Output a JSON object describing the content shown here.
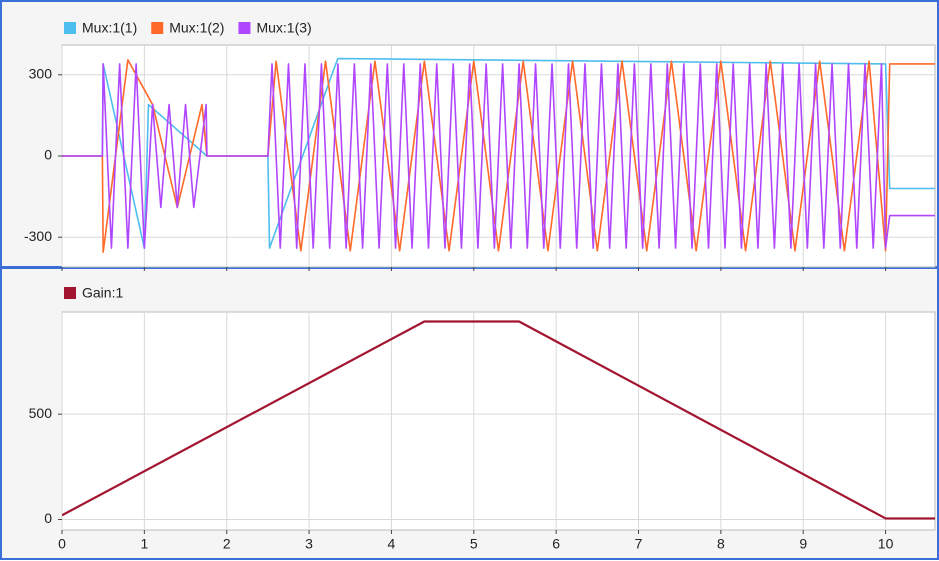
{
  "chart_data": [
    {
      "type": "line",
      "xlim": [
        0,
        10.6
      ],
      "xticks": [
        0,
        1,
        2,
        3,
        4,
        5,
        6,
        7,
        8,
        9,
        10
      ],
      "show_xtick_labels": false,
      "ylim": [
        -410,
        410
      ],
      "yticks": [
        -300,
        0,
        300
      ],
      "grid": true,
      "legend": "top-left",
      "series": [
        {
          "name": "Mux:1(1)",
          "color": "#4dbeee",
          "x": [
            0,
            0.49,
            0.5,
            1.0,
            1.05,
            1.76,
            2.5,
            2.52,
            3.3,
            3.35,
            10.0,
            10.05,
            10.6
          ],
          "values": [
            0,
            0,
            340,
            -340,
            190,
            0,
            0,
            -340,
            320,
            360,
            340,
            -120,
            -120
          ]
        },
        {
          "name": "Mux:1(2)",
          "color": "#ff6929",
          "x": [
            0,
            0.49,
            0.5,
            0.8,
            1.1,
            1.4,
            1.7,
            1.76,
            2.5,
            2.6,
            2.9,
            3.2,
            3.5,
            3.8,
            4.1,
            4.4,
            4.7,
            5.0,
            5.3,
            5.6,
            5.9,
            6.2,
            6.5,
            6.8,
            7.1,
            7.4,
            7.7,
            8.0,
            8.3,
            8.6,
            8.9,
            9.2,
            9.5,
            9.8,
            10.0,
            10.05,
            10.6
          ],
          "values": [
            0,
            0,
            -355,
            355,
            190,
            -190,
            190,
            0,
            0,
            350,
            -350,
            350,
            -350,
            350,
            -350,
            350,
            -350,
            350,
            -350,
            350,
            -350,
            350,
            -350,
            350,
            -350,
            350,
            -350,
            350,
            -350,
            350,
            -350,
            350,
            -350,
            350,
            -350,
            340,
            340
          ]
        },
        {
          "name": "Mux:1(3)",
          "color": "#b146ff",
          "x": [
            0,
            0.49,
            0.5,
            0.6,
            0.7,
            0.8,
            0.9,
            1.0,
            1.1,
            1.2,
            1.3,
            1.4,
            1.5,
            1.6,
            1.75,
            1.76,
            2.5,
            2.55,
            2.65,
            2.75,
            2.85,
            2.95,
            3.05,
            3.15,
            3.25,
            3.35,
            3.45,
            3.55,
            3.65,
            3.75,
            3.85,
            3.95,
            4.05,
            4.15,
            4.25,
            4.35,
            4.45,
            4.55,
            4.65,
            4.75,
            4.85,
            4.95,
            5.05,
            5.15,
            5.25,
            5.35,
            5.45,
            5.55,
            5.65,
            5.75,
            5.85,
            5.95,
            6.05,
            6.15,
            6.25,
            6.35,
            6.45,
            6.55,
            6.65,
            6.75,
            6.85,
            6.95,
            7.05,
            7.15,
            7.25,
            7.35,
            7.45,
            7.55,
            7.65,
            7.75,
            7.85,
            7.95,
            8.05,
            8.15,
            8.25,
            8.35,
            8.45,
            8.55,
            8.65,
            8.75,
            8.85,
            8.95,
            9.05,
            9.15,
            9.25,
            9.35,
            9.45,
            9.55,
            9.65,
            9.75,
            9.85,
            9.95,
            10.0,
            10.05,
            10.6
          ],
          "values": [
            0,
            0,
            340,
            -340,
            340,
            -340,
            340,
            -340,
            190,
            -190,
            190,
            -190,
            190,
            -190,
            190,
            0,
            0,
            340,
            -340,
            340,
            -340,
            340,
            -340,
            340,
            -340,
            340,
            -340,
            340,
            -340,
            340,
            -340,
            340,
            -340,
            340,
            -340,
            340,
            -340,
            340,
            -340,
            340,
            -340,
            340,
            -340,
            340,
            -340,
            340,
            -340,
            340,
            -340,
            340,
            -340,
            340,
            -340,
            340,
            -340,
            340,
            -340,
            340,
            -340,
            340,
            -340,
            340,
            -340,
            340,
            -340,
            340,
            -340,
            340,
            -340,
            340,
            -340,
            340,
            -340,
            340,
            -340,
            340,
            -340,
            340,
            -340,
            340,
            -340,
            340,
            -340,
            340,
            -340,
            340,
            -340,
            340,
            -340,
            340,
            -340,
            340,
            -340,
            -220,
            -220
          ]
        }
      ]
    },
    {
      "type": "line",
      "xlim": [
        0,
        10.6
      ],
      "xticks": [
        0,
        1,
        2,
        3,
        4,
        5,
        6,
        7,
        8,
        9,
        10
      ],
      "show_xtick_labels": true,
      "ylim": [
        -50,
        985
      ],
      "yticks": [
        0,
        500
      ],
      "grid": true,
      "legend": "top-left",
      "series": [
        {
          "name": "Gain:1",
          "color": "#a2142f",
          "x": [
            0,
            4.4,
            5.55,
            10,
            10.6
          ],
          "values": [
            20,
            940,
            940,
            5,
            5
          ]
        }
      ]
    }
  ]
}
